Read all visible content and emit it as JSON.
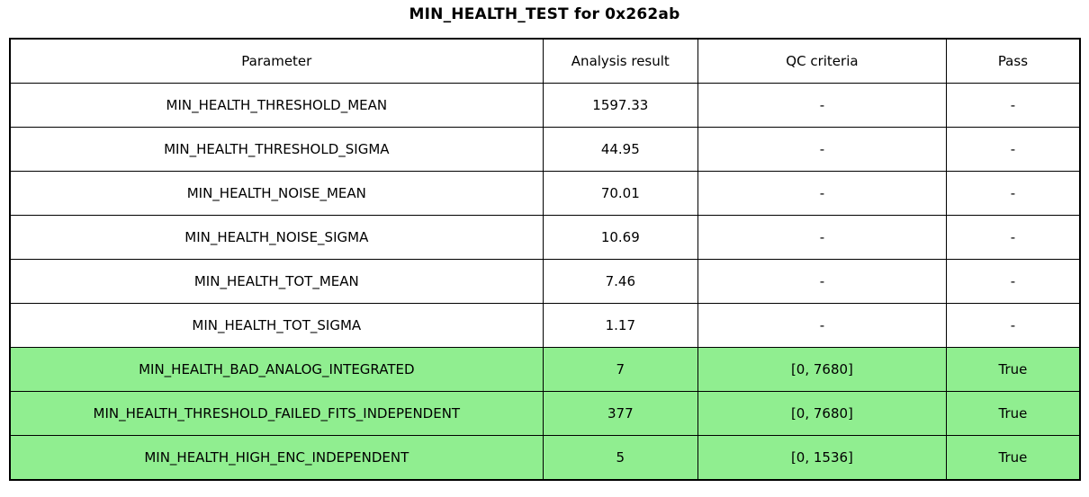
{
  "title": "MIN_HEALTH_TEST for 0x262ab",
  "colors": {
    "row_highlight": "#90EE90",
    "border": "#000000",
    "background": "#FFFFFF",
    "text": "#000000"
  },
  "table": {
    "columns": [
      "Parameter",
      "Analysis result",
      "QC criteria",
      "Pass"
    ],
    "rows": [
      {
        "param": "MIN_HEALTH_THRESHOLD_MEAN",
        "result": "1597.33",
        "qc": "-",
        "pass": "-",
        "highlighted": false
      },
      {
        "param": "MIN_HEALTH_THRESHOLD_SIGMA",
        "result": "44.95",
        "qc": "-",
        "pass": "-",
        "highlighted": false
      },
      {
        "param": "MIN_HEALTH_NOISE_MEAN",
        "result": "70.01",
        "qc": "-",
        "pass": "-",
        "highlighted": false
      },
      {
        "param": "MIN_HEALTH_NOISE_SIGMA",
        "result": "10.69",
        "qc": "-",
        "pass": "-",
        "highlighted": false
      },
      {
        "param": "MIN_HEALTH_TOT_MEAN",
        "result": "7.46",
        "qc": "-",
        "pass": "-",
        "highlighted": false
      },
      {
        "param": "MIN_HEALTH_TOT_SIGMA",
        "result": "1.17",
        "qc": "-",
        "pass": "-",
        "highlighted": false
      },
      {
        "param": "MIN_HEALTH_BAD_ANALOG_INTEGRATED",
        "result": "7",
        "qc": "[0, 7680]",
        "pass": "True",
        "highlighted": true
      },
      {
        "param": "MIN_HEALTH_THRESHOLD_FAILED_FITS_INDEPENDENT",
        "result": "377",
        "qc": "[0, 7680]",
        "pass": "True",
        "highlighted": true
      },
      {
        "param": "MIN_HEALTH_HIGH_ENC_INDEPENDENT",
        "result": "5",
        "qc": "[0, 1536]",
        "pass": "True",
        "highlighted": true
      }
    ]
  },
  "chart_data": {
    "type": "table",
    "title": "MIN_HEALTH_TEST for 0x262ab",
    "columns": [
      "Parameter",
      "Analysis result",
      "QC criteria",
      "Pass"
    ],
    "rows": [
      [
        "MIN_HEALTH_THRESHOLD_MEAN",
        1597.33,
        "-",
        "-"
      ],
      [
        "MIN_HEALTH_THRESHOLD_SIGMA",
        44.95,
        "-",
        "-"
      ],
      [
        "MIN_HEALTH_NOISE_MEAN",
        70.01,
        "-",
        "-"
      ],
      [
        "MIN_HEALTH_NOISE_SIGMA",
        10.69,
        "-",
        "-"
      ],
      [
        "MIN_HEALTH_TOT_MEAN",
        7.46,
        "-",
        "-"
      ],
      [
        "MIN_HEALTH_TOT_SIGMA",
        1.17,
        "-",
        "-"
      ],
      [
        "MIN_HEALTH_BAD_ANALOG_INTEGRATED",
        7,
        "[0, 7680]",
        "True"
      ],
      [
        "MIN_HEALTH_THRESHOLD_FAILED_FITS_INDEPENDENT",
        377,
        "[0, 7680]",
        "True"
      ],
      [
        "MIN_HEALTH_HIGH_ENC_INDEPENDENT",
        5,
        "[0, 1536]",
        "True"
      ]
    ],
    "layout": {
      "highlighted_rows": [
        6,
        7,
        8
      ],
      "highlight_color": "#90EE90",
      "grid": true
    }
  }
}
